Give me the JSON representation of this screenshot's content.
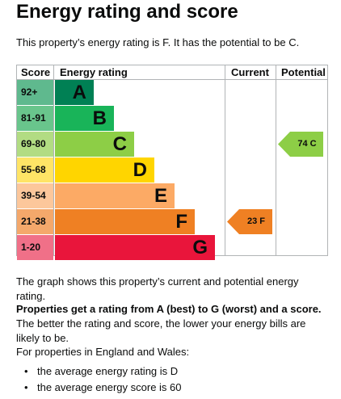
{
  "page": {
    "title": "Energy rating and score",
    "intro": "This property’s energy rating is F. It has the potential to be C."
  },
  "epc_chart": {
    "headers": {
      "score": "Score",
      "energy_rating": "Energy rating",
      "current": "Current",
      "potential": "Potential"
    },
    "bands": [
      {
        "score": "92+",
        "letter": "A",
        "color": "#008054",
        "score_bg": "#5fb98e"
      },
      {
        "score": "81-91",
        "letter": "B",
        "color": "#19b459",
        "score_bg": "#69c58c"
      },
      {
        "score": "69-80",
        "letter": "C",
        "color": "#8dce46",
        "score_bg": "#b2dc83"
      },
      {
        "score": "55-68",
        "letter": "D",
        "color": "#ffd500",
        "score_bg": "#ffe466"
      },
      {
        "score": "39-54",
        "letter": "E",
        "color": "#fcaa65",
        "score_bg": "#fcc79b"
      },
      {
        "score": "21-38",
        "letter": "F",
        "color": "#ef8023",
        "score_bg": "#f4a86b"
      },
      {
        "score": "1-20",
        "letter": "G",
        "color": "#e9153b",
        "score_bg": "#f07088"
      }
    ],
    "current": {
      "label": "23 F",
      "band": "F",
      "color": "#ef8023"
    },
    "potential": {
      "label": "74 C",
      "band": "C",
      "color": "#8dce46"
    }
  },
  "chart_data": {
    "type": "bar",
    "categories": [
      "A",
      "B",
      "C",
      "D",
      "E",
      "F",
      "G"
    ],
    "score_ranges": [
      "92+",
      "81-91",
      "69-80",
      "55-68",
      "39-54",
      "21-38",
      "1-20"
    ],
    "current": {
      "score": 23,
      "rating": "F"
    },
    "potential": {
      "score": 74,
      "rating": "C"
    }
  },
  "text": {
    "graph_caption": "The graph shows this property’s current and potential energy rating.",
    "bold_lead": "Properties get a rating from A (best) to G (worst) and a score.",
    "rest": " The better the rating and score, the lower your energy bills are likely to be.",
    "england_wales": "For properties in England and Wales:",
    "bullets": [
      "the average energy rating is D",
      "the average energy score is 60"
    ]
  }
}
